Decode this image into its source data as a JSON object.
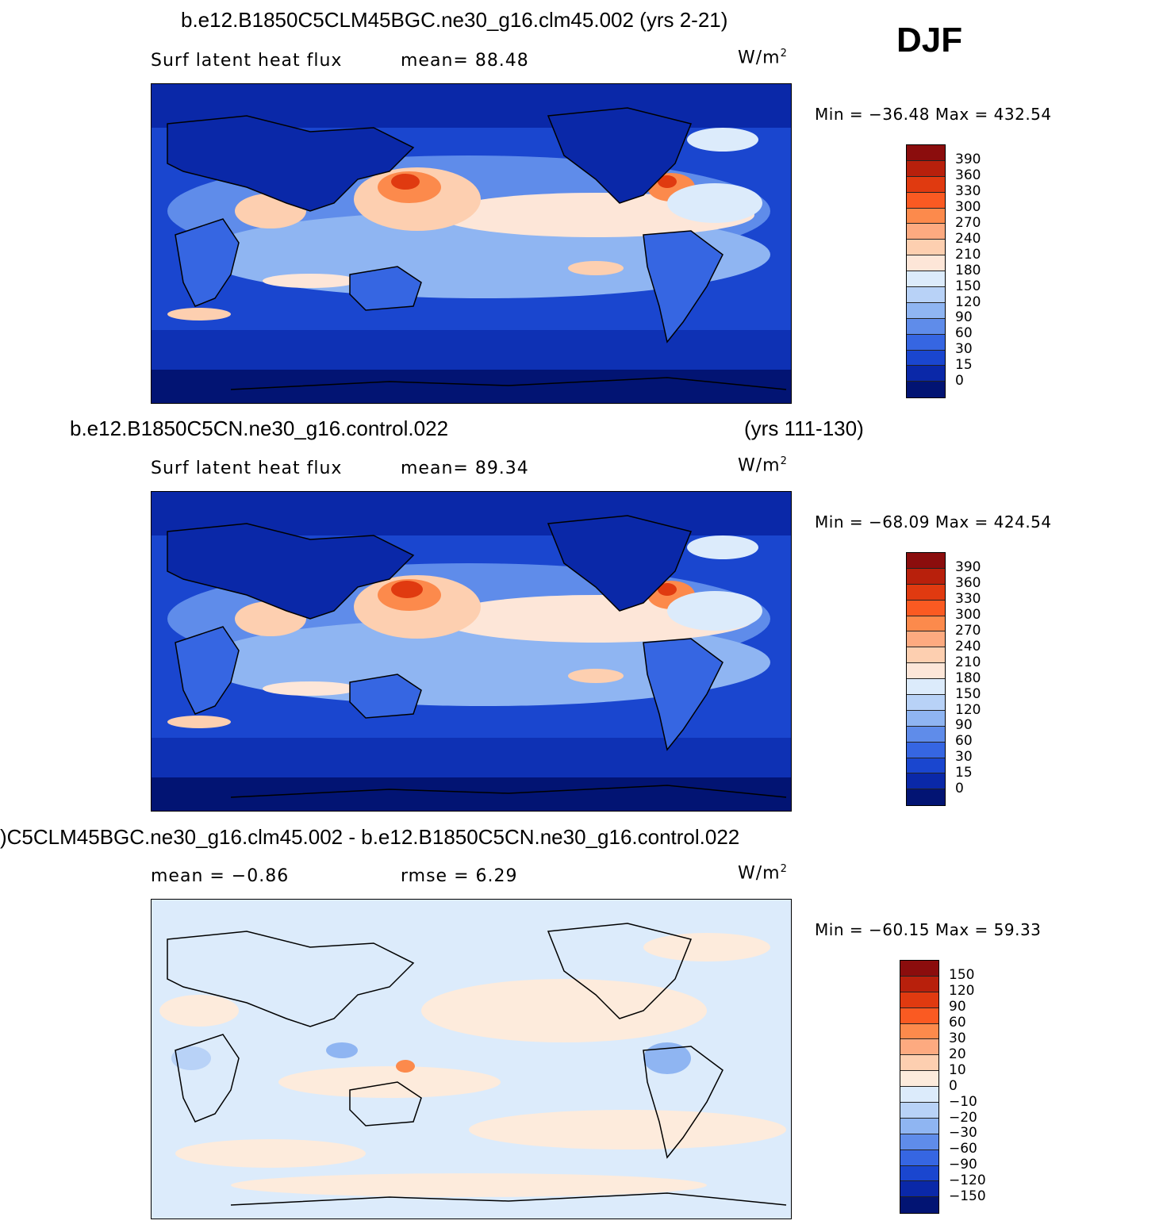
{
  "season": "DJF",
  "panels": [
    {
      "title": "b.e12.B1850C5CLM45BGC.ne30_g16.clm45.002 (yrs 2-21)",
      "subtitle_left": "Surf latent heat flux",
      "subtitle_mid": "mean=   88.48",
      "units": "W/m",
      "units_sup": "2",
      "minmax": "Min  =  −36.48  Max  =  432.54",
      "colorbar": {
        "labels": [
          "390",
          "360",
          "330",
          "300",
          "270",
          "240",
          "210",
          "180",
          "150",
          "120",
          "90",
          "60",
          "30",
          "15",
          "0"
        ],
        "colors": [
          "#8b0d0d",
          "#b8200c",
          "#e03a10",
          "#fa5a22",
          "#fc8a4c",
          "#fdaa80",
          "#fdcfb0",
          "#fde6d8",
          "#dcebfb",
          "#b8d2f7",
          "#8fb5f2",
          "#5f8cea",
          "#3666e2",
          "#1a46cf",
          "#0a28a8",
          "#021473"
        ]
      }
    },
    {
      "title_left": "b.e12.B1850C5CN.ne30_g16.control.022",
      "title_right": "(yrs 111-130)",
      "subtitle_left": "Surf latent heat flux",
      "subtitle_mid": "mean=   89.34",
      "units": "W/m",
      "units_sup": "2",
      "minmax": "Min  =  −68.09  Max  =  424.54",
      "colorbar": {
        "labels": [
          "390",
          "360",
          "330",
          "300",
          "270",
          "240",
          "210",
          "180",
          "150",
          "120",
          "90",
          "60",
          "30",
          "15",
          "0"
        ],
        "colors": [
          "#8b0d0d",
          "#b8200c",
          "#e03a10",
          "#fa5a22",
          "#fc8a4c",
          "#fdaa80",
          "#fdcfb0",
          "#fde6d8",
          "#dcebfb",
          "#b8d2f7",
          "#8fb5f2",
          "#5f8cea",
          "#3666e2",
          "#1a46cf",
          "#0a28a8",
          "#021473"
        ]
      }
    },
    {
      "title": ")C5CLM45BGC.ne30_g16.clm45.002 - b.e12.B1850C5CN.ne30_g16.control.022",
      "subtitle_left": "mean  =    −0.86",
      "subtitle_mid": "rmse  =     6.29",
      "units": "W/m",
      "units_sup": "2",
      "minmax": "Min  =  −60.15  Max  =   59.33",
      "colorbar": {
        "labels": [
          "150",
          "120",
          "90",
          "60",
          "30",
          "20",
          "10",
          "0",
          "−10",
          "−20",
          "−30",
          "−60",
          "−90",
          "−120",
          "−150"
        ],
        "colors": [
          "#8b0d0d",
          "#b8200c",
          "#e03a10",
          "#fa5a22",
          "#fc8a4c",
          "#fdaa80",
          "#fdcfb0",
          "#fdebdc",
          "#dcebfb",
          "#b8d2f7",
          "#8fb5f2",
          "#5f8cea",
          "#3666e2",
          "#1a46cf",
          "#0a28a8",
          "#021473"
        ]
      }
    }
  ]
}
